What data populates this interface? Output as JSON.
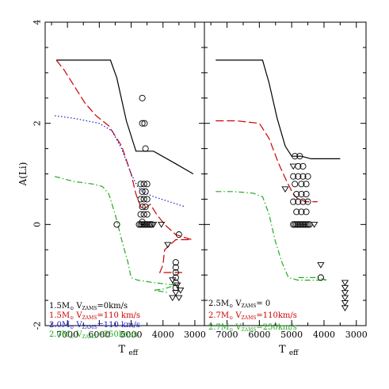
{
  "chart_data": [
    {
      "type": "line",
      "panel": "left",
      "xlabel": "T",
      "xlabel_sub": "eff",
      "ylabel": "A(Li)",
      "xlim": [
        7700,
        2700
      ],
      "ylim": [
        -2,
        4
      ],
      "xticks": [
        7000,
        6000,
        5000,
        4000,
        3000
      ],
      "yticks": [
        -2,
        0,
        2,
        4
      ],
      "series": [
        {
          "name": "1.5M⊙ V_ZAMS=0km/s",
          "label_parts": [
            "1.5M",
            "⊙",
            " V",
            "ZAMS",
            "=0km/s"
          ],
          "color": "#000000",
          "dash": "solid",
          "points": [
            [
              7350,
              3.25
            ],
            [
              6500,
              3.25
            ],
            [
              5650,
              3.25
            ],
            [
              5450,
              2.9
            ],
            [
              5150,
              2.05
            ],
            [
              4850,
              1.45
            ],
            [
              4300,
              1.45
            ],
            [
              3600,
              1.2
            ],
            [
              3050,
              1.0
            ]
          ]
        },
        {
          "name": "1.5M⊙ V_ZAMS=110 km/s",
          "label_parts": [
            "1.5M",
            "⊙",
            " V",
            "ZAMS",
            "=110 km/s"
          ],
          "color": "#cc0000",
          "dash": "longdash",
          "points": [
            [
              7350,
              3.25
            ],
            [
              7100,
              3.05
            ],
            [
              6800,
              2.75
            ],
            [
              6450,
              2.4
            ],
            [
              6100,
              2.15
            ],
            [
              5700,
              1.95
            ],
            [
              5300,
              1.55
            ],
            [
              5000,
              1.0
            ],
            [
              4850,
              0.6
            ],
            [
              4700,
              0.35
            ],
            [
              4600,
              0.3
            ],
            [
              4400,
              0.4
            ],
            [
              4200,
              0.2
            ],
            [
              3950,
              0.0
            ],
            [
              3600,
              -0.2
            ],
            [
              3100,
              -0.3
            ],
            [
              3600,
              -0.3
            ],
            [
              3950,
              -0.5
            ],
            [
              4000,
              -0.8
            ],
            [
              4100,
              -0.95
            ],
            [
              3400,
              -0.95
            ]
          ]
        },
        {
          "name": "2.0M⊙ V_ZAMS=110 km/s",
          "label_parts": [
            "2.0M",
            "⊙",
            " V",
            "ZAMS",
            "=110 km/s"
          ],
          "color": "#1a1acc",
          "dash": "dotted",
          "points": [
            [
              7400,
              2.15
            ],
            [
              6800,
              2.1
            ],
            [
              6000,
              2.0
            ],
            [
              5600,
              1.85
            ],
            [
              5300,
              1.5
            ],
            [
              5000,
              1.0
            ],
            [
              4800,
              0.75
            ],
            [
              4650,
              0.65
            ],
            [
              4300,
              0.55
            ],
            [
              3800,
              0.45
            ],
            [
              3300,
              0.35
            ]
          ]
        },
        {
          "name": "2.0M⊙ V_ZAMS=250km/s",
          "label_parts": [
            "2.0M",
            "⊙",
            " V",
            "ZAMS",
            "=250km/s"
          ],
          "color": "#22aa22",
          "dash": "dashdot",
          "points": [
            [
              7400,
              0.95
            ],
            [
              6800,
              0.85
            ],
            [
              6200,
              0.8
            ],
            [
              5900,
              0.75
            ],
            [
              5700,
              0.6
            ],
            [
              5500,
              0.2
            ],
            [
              5300,
              -0.3
            ],
            [
              5100,
              -0.75
            ],
            [
              5000,
              -1.05
            ],
            [
              4800,
              -1.1
            ],
            [
              4300,
              -1.15
            ],
            [
              3600,
              -1.2
            ],
            [
              4000,
              -1.28
            ],
            [
              4300,
              -1.3
            ],
            [
              3800,
              -1.35
            ]
          ]
        }
      ],
      "scatter": {
        "circles": [
          [
            4650,
            2.5
          ],
          [
            4650,
            2.0
          ],
          [
            4580,
            2.0
          ],
          [
            4550,
            1.5
          ],
          [
            5450,
            0.0
          ],
          [
            4700,
            0.8
          ],
          [
            4600,
            0.8
          ],
          [
            4500,
            0.8
          ],
          [
            4650,
            0.65
          ],
          [
            4550,
            0.65
          ],
          [
            4700,
            0.5
          ],
          [
            4600,
            0.5
          ],
          [
            4500,
            0.5
          ],
          [
            4650,
            0.35
          ],
          [
            4550,
            0.35
          ],
          [
            4700,
            0.2
          ],
          [
            4600,
            0.2
          ],
          [
            4500,
            0.2
          ],
          [
            4650,
            0.05
          ],
          [
            4750,
            0.0
          ],
          [
            4700,
            0.0
          ],
          [
            4650,
            0.0
          ],
          [
            4600,
            0.0
          ],
          [
            4550,
            0.0
          ],
          [
            4500,
            0.0
          ],
          [
            4450,
            0.0
          ],
          [
            4400,
            0.0
          ],
          [
            4350,
            0.0
          ],
          [
            3500,
            -0.2
          ],
          [
            3600,
            -0.75
          ],
          [
            3600,
            -0.85
          ],
          [
            3600,
            -0.95
          ],
          [
            3600,
            -1.05
          ],
          [
            3600,
            -1.15
          ],
          [
            3600,
            -1.25
          ]
        ],
        "triangles": [
          [
            4300,
            0.0
          ],
          [
            4050,
            0.0
          ],
          [
            3850,
            -0.4
          ],
          [
            3700,
            -1.1
          ],
          [
            3550,
            -1.2
          ],
          [
            3450,
            -1.3
          ],
          [
            3600,
            -1.35
          ],
          [
            3700,
            -1.45
          ],
          [
            3500,
            -1.45
          ]
        ]
      }
    },
    {
      "type": "line",
      "panel": "right",
      "xlabel": "T",
      "xlabel_sub": "eff",
      "xlim": [
        7700,
        2700
      ],
      "ylim": [
        -2,
        4
      ],
      "xticks": [
        7000,
        6000,
        5000,
        4000,
        3000
      ],
      "series": [
        {
          "name": "2.5M⊙ V_ZAMS= 0",
          "label_parts": [
            "2.5M",
            "⊙",
            " V",
            "ZAMS",
            "= 0"
          ],
          "color": "#000000",
          "dash": "solid",
          "points": [
            [
              7350,
              3.25
            ],
            [
              6500,
              3.25
            ],
            [
              5900,
              3.25
            ],
            [
              5700,
              2.8
            ],
            [
              5450,
              2.1
            ],
            [
              5200,
              1.55
            ],
            [
              5000,
              1.35
            ],
            [
              4700,
              1.35
            ],
            [
              4400,
              1.3
            ],
            [
              4000,
              1.3
            ],
            [
              3500,
              1.3
            ]
          ]
        },
        {
          "name": "2.7M⊙ V_ZAMS=110km/s",
          "label_parts": [
            "2.7M",
            "⊙",
            " V",
            "ZAMS",
            "=110km/s"
          ],
          "color": "#cc0000",
          "dash": "longdash",
          "points": [
            [
              7350,
              2.05
            ],
            [
              6700,
              2.05
            ],
            [
              6000,
              2.0
            ],
            [
              5700,
              1.7
            ],
            [
              5400,
              1.2
            ],
            [
              5150,
              0.85
            ],
            [
              4950,
              0.6
            ],
            [
              4800,
              0.5
            ],
            [
              4550,
              0.45
            ],
            [
              4200,
              0.45
            ]
          ]
        },
        {
          "name": "2.7M⊙ V_ZAMS=250km/s",
          "label_parts": [
            "2.7M",
            "⊙",
            " V",
            "ZAMS",
            "=250km/s"
          ],
          "color": "#22aa22",
          "dash": "dashdot",
          "points": [
            [
              7350,
              0.65
            ],
            [
              6800,
              0.65
            ],
            [
              6200,
              0.62
            ],
            [
              5900,
              0.55
            ],
            [
              5700,
              0.2
            ],
            [
              5500,
              -0.35
            ],
            [
              5300,
              -0.75
            ],
            [
              5100,
              -1.05
            ],
            [
              4800,
              -1.1
            ],
            [
              4300,
              -1.1
            ],
            [
              3900,
              -1.1
            ],
            [
              4200,
              -1.05
            ],
            [
              4800,
              -1.05
            ]
          ]
        }
      ],
      "scatter": {
        "circles": [
          [
            4900,
            1.35
          ],
          [
            4750,
            1.35
          ],
          [
            4800,
            1.15
          ],
          [
            4650,
            1.15
          ],
          [
            4950,
            0.95
          ],
          [
            4800,
            0.95
          ],
          [
            4650,
            0.95
          ],
          [
            4500,
            0.95
          ],
          [
            4900,
            0.8
          ],
          [
            4700,
            0.8
          ],
          [
            4550,
            0.8
          ],
          [
            4850,
            0.6
          ],
          [
            4700,
            0.6
          ],
          [
            4550,
            0.6
          ],
          [
            4950,
            0.45
          ],
          [
            4800,
            0.45
          ],
          [
            4650,
            0.45
          ],
          [
            4500,
            0.45
          ],
          [
            4850,
            0.25
          ],
          [
            4700,
            0.25
          ],
          [
            4550,
            0.25
          ],
          [
            4950,
            0.0
          ],
          [
            4900,
            0.0
          ],
          [
            4850,
            0.0
          ],
          [
            4800,
            0.0
          ],
          [
            4750,
            0.0
          ],
          [
            4700,
            0.0
          ],
          [
            4650,
            0.0
          ],
          [
            4600,
            0.0
          ],
          [
            4550,
            0.0
          ],
          [
            4500,
            0.0
          ],
          [
            4450,
            0.0
          ],
          [
            4100,
            -1.05
          ]
        ],
        "triangles": [
          [
            5200,
            0.7
          ],
          [
            4950,
            1.15
          ],
          [
            4300,
            0.0
          ],
          [
            4100,
            -0.8
          ],
          [
            3350,
            -1.15
          ],
          [
            3350,
            -1.25
          ],
          [
            3350,
            -1.35
          ],
          [
            3350,
            -1.45
          ],
          [
            3350,
            -1.55
          ],
          [
            3350,
            -1.65
          ]
        ]
      }
    }
  ]
}
